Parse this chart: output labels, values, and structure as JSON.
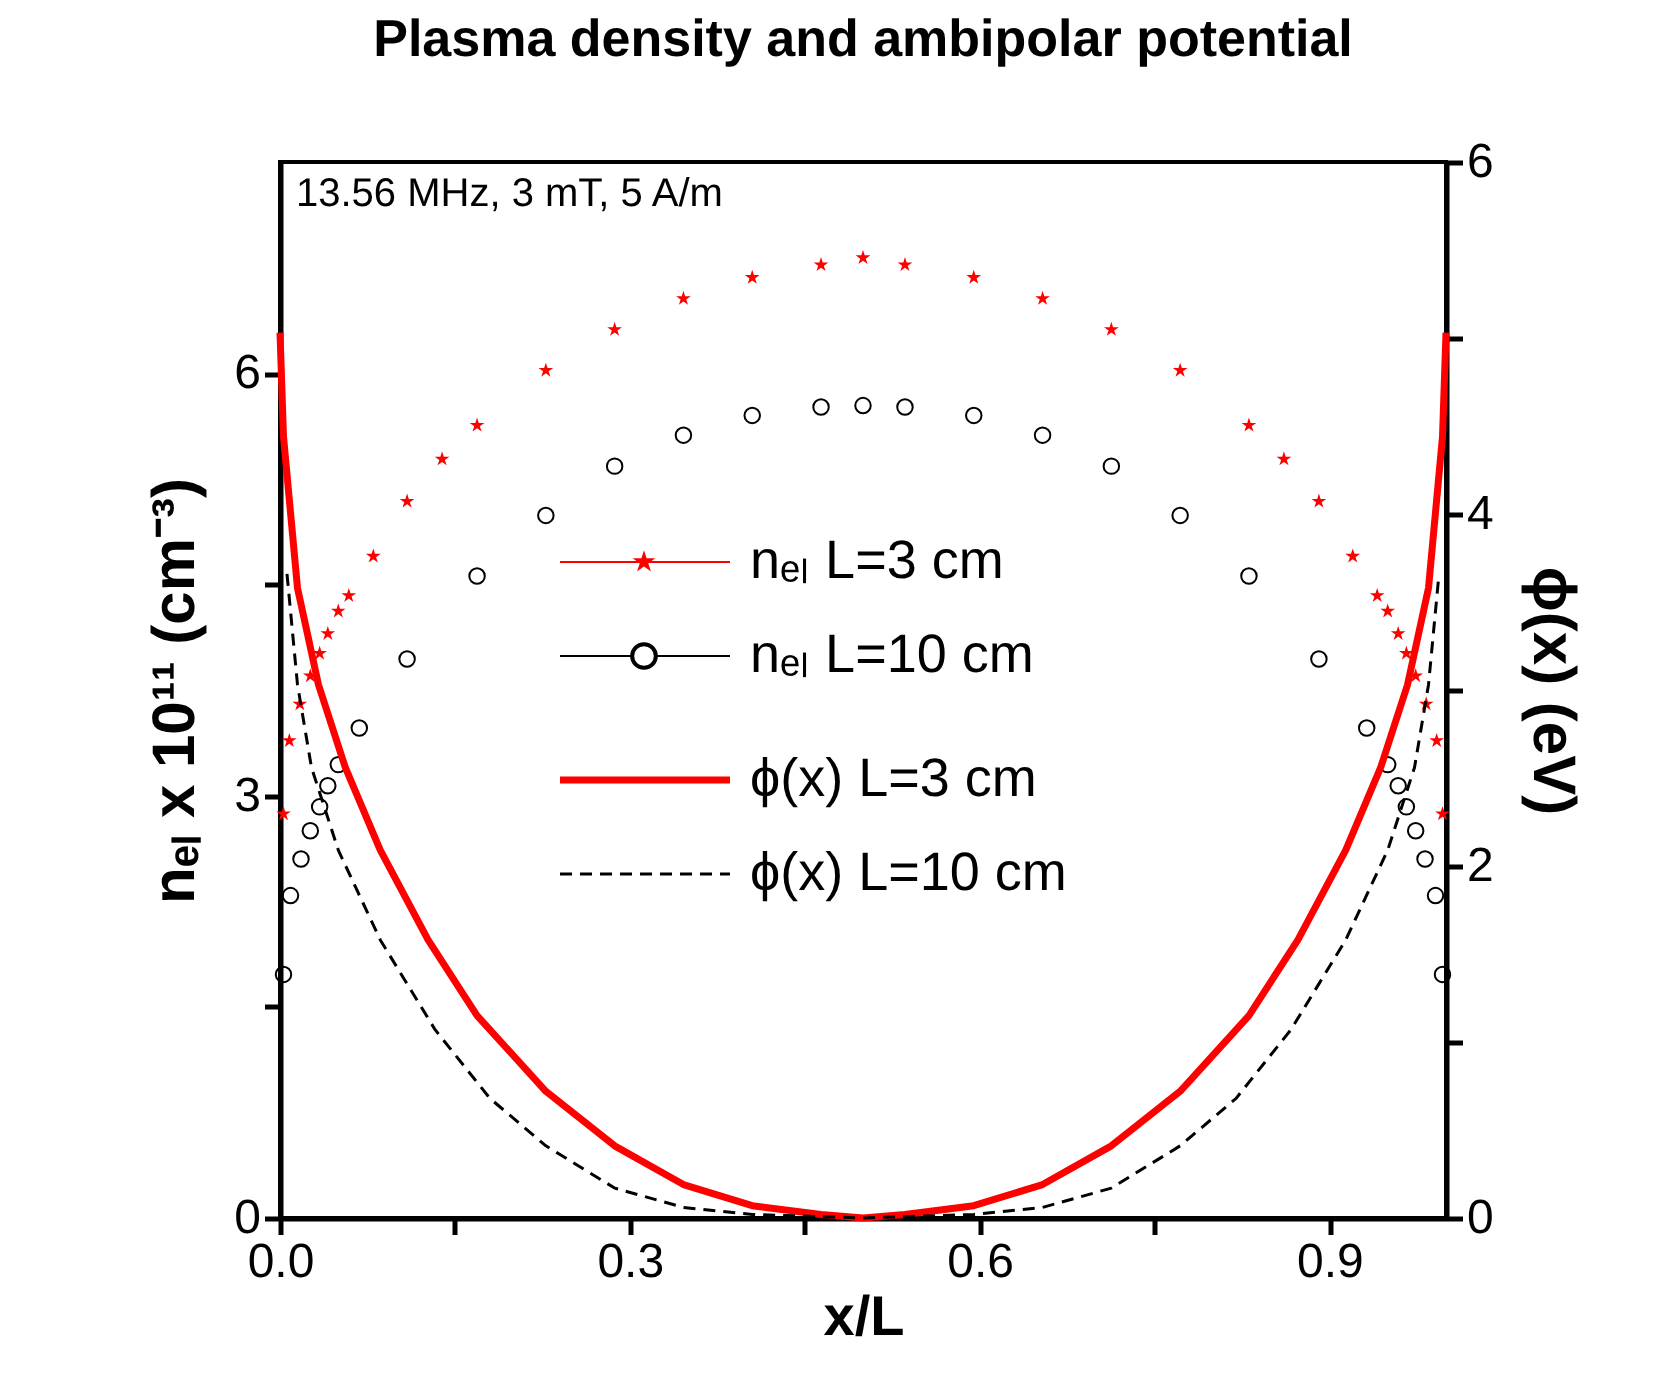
{
  "chart_data": {
    "type": "line",
    "title": "Plasma density and ambipolar potential",
    "xlabel": "x/L",
    "ylabel": "nₑₗ x 10¹¹ (cm⁻³)",
    "y2label": "ϕ(x) (eV)",
    "annotations": [
      "13.56 MHz, 3 mT, 5 A/m"
    ],
    "xlim": [
      0,
      1
    ],
    "xticks": [
      {
        "value": 0,
        "label": "0.0"
      },
      {
        "value": 0.15,
        "label": null
      },
      {
        "value": 0.3,
        "label": "0.3"
      },
      {
        "value": 0.45,
        "label": null
      },
      {
        "value": 0.6,
        "label": "0.6"
      },
      {
        "value": 0.75,
        "label": null
      },
      {
        "value": 0.9,
        "label": "0.9"
      }
    ],
    "ylim": [
      0,
      7.5
    ],
    "yticks": [
      0,
      {
        "value": 1.5,
        "label": null
      },
      3,
      {
        "value": 4.5,
        "label": null
      },
      6
    ],
    "y2lim": [
      0,
      6
    ],
    "y2ticks": [
      0,
      {
        "value": 1,
        "label": null
      },
      2,
      {
        "value": 3,
        "label": null
      },
      4,
      {
        "value": 5,
        "label": null
      },
      6
    ],
    "legend": "center",
    "grid": false,
    "series": [
      {
        "name": "nₑₗ  L=3 cm",
        "type": "scatter",
        "marker": "star",
        "color": "#ff0000",
        "x": [
          0.003,
          0.008,
          0.017,
          0.026,
          0.034,
          0.041,
          0.05,
          0.059,
          0.08,
          0.109,
          0.139,
          0.169,
          0.228,
          0.287,
          0.346,
          0.405,
          0.464,
          0.5,
          0.536,
          0.595,
          0.654,
          0.713,
          0.772,
          0.831,
          0.861,
          0.891,
          0.92,
          0.941,
          0.95,
          0.959,
          0.966,
          0.974,
          0.983,
          0.992,
          0.997
        ],
        "values": [
          2.87,
          3.39,
          3.65,
          3.85,
          4.01,
          4.15,
          4.31,
          4.42,
          4.7,
          5.09,
          5.39,
          5.63,
          6.02,
          6.31,
          6.53,
          6.68,
          6.77,
          6.82,
          6.77,
          6.68,
          6.53,
          6.31,
          6.02,
          5.63,
          5.39,
          5.09,
          4.7,
          4.42,
          4.31,
          4.15,
          4.01,
          3.85,
          3.65,
          3.39,
          2.87
        ]
      },
      {
        "name": "nₑₗ  L=10 cm",
        "type": "scatter",
        "marker": "circle",
        "color": "#000000",
        "x": [
          0.003,
          0.009,
          0.018,
          0.026,
          0.034,
          0.041,
          0.05,
          0.068,
          0.109,
          0.169,
          0.228,
          0.287,
          0.346,
          0.405,
          0.464,
          0.5,
          0.536,
          0.595,
          0.654,
          0.713,
          0.772,
          0.831,
          0.891,
          0.932,
          0.95,
          0.959,
          0.966,
          0.974,
          0.982,
          0.991,
          0.997
        ],
        "values": [
          1.73,
          2.29,
          2.55,
          2.75,
          2.92,
          3.07,
          3.22,
          3.48,
          3.97,
          4.56,
          4.99,
          5.34,
          5.56,
          5.7,
          5.76,
          5.77,
          5.76,
          5.7,
          5.56,
          5.34,
          4.99,
          4.56,
          3.97,
          3.48,
          3.22,
          3.07,
          2.92,
          2.75,
          2.55,
          2.29,
          1.73
        ]
      },
      {
        "name": "ϕ(x)  L=3 cm",
        "axis": "y2",
        "line_style": "solid",
        "color": "#ff0000",
        "x": [
          0,
          0.003,
          0.015,
          0.033,
          0.056,
          0.086,
          0.127,
          0.169,
          0.228,
          0.287,
          0.346,
          0.405,
          0.464,
          0.5,
          0.536,
          0.595,
          0.654,
          0.713,
          0.772,
          0.831,
          0.873,
          0.914,
          0.944,
          0.967,
          0.985,
          0.997,
          1
        ],
        "values": [
          5.03,
          4.44,
          3.58,
          3.03,
          2.56,
          2.09,
          1.58,
          1.15,
          0.72,
          0.41,
          0.19,
          0.07,
          0.02,
          0,
          0.02,
          0.07,
          0.19,
          0.41,
          0.72,
          1.15,
          1.58,
          2.09,
          2.56,
          3.03,
          3.58,
          4.44,
          5.03
        ]
      },
      {
        "name": "ϕ(x)  L=10 cm",
        "axis": "y2",
        "line_style": "dashed",
        "color": "#000000",
        "x": [
          0.006,
          0.015,
          0.027,
          0.05,
          0.086,
          0.133,
          0.18,
          0.228,
          0.287,
          0.346,
          0.405,
          0.5,
          0.595,
          0.654,
          0.713,
          0.772,
          0.82,
          0.867,
          0.914,
          0.95,
          0.973,
          0.985,
          0.994
        ],
        "values": [
          3.66,
          3.03,
          2.56,
          2.09,
          1.58,
          1.07,
          0.68,
          0.41,
          0.17,
          0.06,
          0.02,
          0,
          0.02,
          0.06,
          0.17,
          0.41,
          0.68,
          1.07,
          1.58,
          2.09,
          2.56,
          3.03,
          3.66
        ]
      }
    ]
  }
}
